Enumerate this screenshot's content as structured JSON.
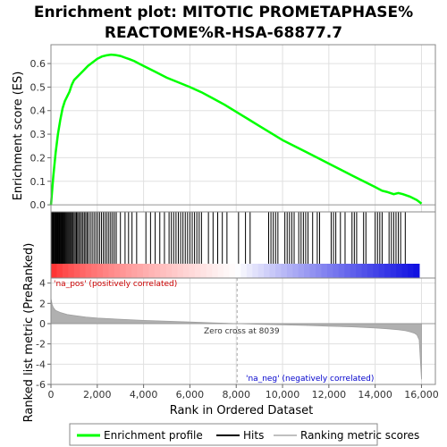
{
  "chart_data": {
    "type": "line",
    "title_line1": "Enrichment plot: MITOTIC PROMETAPHASE%",
    "title_line2": "REACTOME%R-HSA-68877.7",
    "xlabel": "Rank in Ordered Dataset",
    "ylabel_top": "Enrichment score (ES)",
    "ylabel_bottom": "Ranked list metric (PreRanked)",
    "xlim": [
      0,
      16600
    ],
    "x_ticks": [
      0,
      2000,
      4000,
      6000,
      8000,
      10000,
      12000,
      14000,
      16000
    ],
    "x_tick_labels": [
      "0",
      "2,000",
      "4,000",
      "6,000",
      "8,000",
      "10,000",
      "12,000",
      "14,000",
      "16,000"
    ],
    "es_ylim": [
      -0.03,
      0.68
    ],
    "es_ticks": [
      0.0,
      0.1,
      0.2,
      0.3,
      0.4,
      0.5,
      0.6
    ],
    "es_tick_labels": [
      "0.0",
      "0.1",
      "0.2",
      "0.3",
      "0.4",
      "0.5",
      "0.6"
    ],
    "metric_ylim": [
      -6,
      4.5
    ],
    "metric_ticks": [
      4,
      2,
      0,
      -2,
      -4,
      -6
    ],
    "metric_tick_labels": [
      "4",
      "2",
      "0",
      "-2",
      "-4",
      "-6"
    ],
    "es_curve": {
      "x": [
        0,
        100,
        200,
        300,
        400,
        500,
        600,
        700,
        800,
        900,
        1000,
        1200,
        1400,
        1600,
        1800,
        2000,
        2200,
        2400,
        2600,
        2800,
        3000,
        3200,
        3400,
        3600,
        3800,
        4000,
        4500,
        5000,
        5500,
        6000,
        6500,
        7000,
        7500,
        8000,
        8500,
        9000,
        9500,
        10000,
        10500,
        11000,
        11500,
        12000,
        12500,
        13000,
        13500,
        14000,
        14300,
        14500,
        14800,
        15000,
        15200,
        15500,
        15800,
        16000
      ],
      "y": [
        0.0,
        0.12,
        0.22,
        0.3,
        0.36,
        0.41,
        0.44,
        0.46,
        0.48,
        0.51,
        0.53,
        0.55,
        0.57,
        0.59,
        0.605,
        0.62,
        0.63,
        0.635,
        0.638,
        0.636,
        0.632,
        0.625,
        0.618,
        0.61,
        0.6,
        0.59,
        0.565,
        0.54,
        0.52,
        0.5,
        0.478,
        0.452,
        0.425,
        0.395,
        0.365,
        0.335,
        0.305,
        0.275,
        0.25,
        0.225,
        0.2,
        0.175,
        0.15,
        0.125,
        0.1,
        0.075,
        0.06,
        0.055,
        0.045,
        0.05,
        0.045,
        0.035,
        0.02,
        0.005
      ]
    },
    "hits": [
      20,
      50,
      80,
      110,
      140,
      170,
      200,
      230,
      260,
      290,
      320,
      350,
      380,
      410,
      440,
      470,
      500,
      540,
      580,
      620,
      660,
      700,
      740,
      780,
      820,
      860,
      900,
      950,
      1000,
      1050,
      1100,
      1150,
      1200,
      1260,
      1320,
      1380,
      1440,
      1500,
      1560,
      1620,
      1700,
      1780,
      1860,
      1940,
      2020,
      2100,
      2180,
      2260,
      2340,
      2420,
      2500,
      2580,
      2660,
      2740,
      2820,
      3000,
      3200,
      3350,
      3500,
      3700,
      4100,
      4300,
      4500,
      4700,
      4900,
      5100,
      5200,
      5300,
      5400,
      5500,
      5600,
      5700,
      5800,
      5900,
      6000,
      6100,
      6200,
      6300,
      6400,
      6500,
      6800,
      7000,
      7200,
      7400,
      7600,
      8100,
      8400,
      8600,
      9400,
      9500,
      9600,
      9700,
      9800,
      10100,
      10200,
      10300,
      10400,
      10500,
      10700,
      10800,
      10900,
      11000,
      11100,
      11300,
      11500,
      11600,
      12100,
      12200,
      12300,
      12500,
      12700,
      13000,
      13100,
      13200,
      13500,
      13600,
      14000,
      14100,
      14200,
      14300,
      14600,
      14700,
      14800,
      14900,
      15000,
      15100,
      15300
    ],
    "metric_curve": {
      "x": [
        0,
        50,
        100,
        200,
        400,
        700,
        1000,
        1500,
        2000,
        3000,
        4000,
        5000,
        6000,
        7000,
        8039,
        9000,
        10000,
        11000,
        12000,
        13000,
        14000,
        14500,
        15000,
        15300,
        15500,
        15700,
        15800,
        15900,
        16000
      ],
      "y": [
        2.5,
        1.9,
        1.6,
        1.3,
        1.1,
        0.9,
        0.8,
        0.65,
        0.55,
        0.42,
        0.32,
        0.24,
        0.16,
        0.08,
        0.0,
        -0.06,
        -0.12,
        -0.18,
        -0.25,
        -0.32,
        -0.42,
        -0.5,
        -0.6,
        -0.7,
        -0.8,
        -0.95,
        -1.1,
        -1.6,
        -5.5
      ]
    },
    "zero_cross_rank": 8039,
    "anno_pos": "'na_pos' (positively correlated)",
    "anno_neg": "'na_neg' (negatively correlated)",
    "anno_zero": "Zero cross at 8039",
    "legend": [
      {
        "label": "Enrichment profile",
        "color": "#00ff00"
      },
      {
        "label": "Hits",
        "color": "#000000"
      },
      {
        "label": "Ranking metric scores",
        "color": "#c0c0c0"
      }
    ],
    "colors": {
      "es_line": "#00ff00",
      "hit": "#000000",
      "metric_fill": "#b0b0b0",
      "grid": "#e0e0e0",
      "pos_color": "#ff0000",
      "neg_color": "#0000ff"
    }
  }
}
